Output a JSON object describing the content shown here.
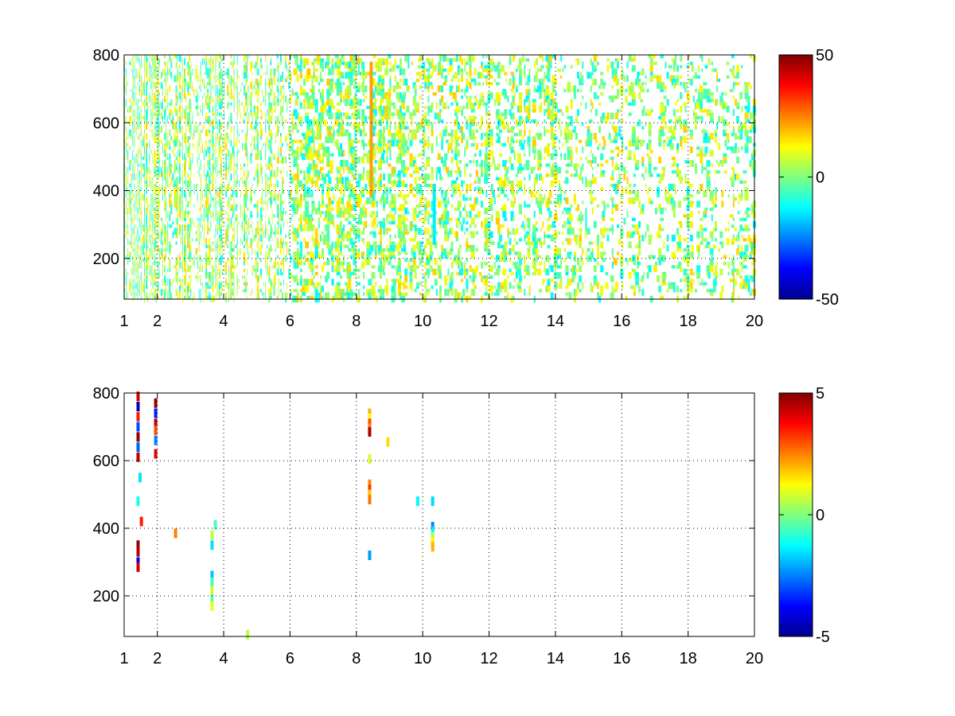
{
  "chart_data": [
    {
      "type": "heatmap",
      "title": "",
      "xlabel": "",
      "ylabel": "",
      "xlim": [
        1,
        20
      ],
      "ylim": [
        80,
        800
      ],
      "xticks": [
        1,
        2,
        4,
        6,
        8,
        10,
        12,
        14,
        16,
        18,
        20
      ],
      "xtick_labels": [
        "1",
        "2",
        "4",
        "6",
        "8",
        "10",
        "12",
        "14",
        "16",
        "18",
        "20"
      ],
      "yticks": [
        200,
        400,
        600,
        800
      ],
      "ytick_labels": [
        "200",
        "400",
        "600",
        "800"
      ],
      "grid": true,
      "colormap": "jet",
      "clim": [
        -50,
        50
      ],
      "colorbar_ticks": [
        -50,
        0,
        50
      ],
      "colorbar_labels": [
        "-50",
        "0",
        "50"
      ],
      "pattern": "dense",
      "seed": 7,
      "density_profile": [
        [
          1,
          0.55
        ],
        [
          4,
          0.45
        ],
        [
          6,
          0.3
        ],
        [
          10,
          0.22
        ],
        [
          14,
          0.18
        ],
        [
          20,
          0.12
        ]
      ],
      "typical_value_range": [
        -14,
        18
      ],
      "highlight_columns": [
        {
          "x": 8.4,
          "y_range": [
            380,
            780
          ],
          "value": 22
        },
        {
          "x": 10.3,
          "y_range": [
            240,
            420
          ],
          "value": -14
        }
      ],
      "cells": []
    },
    {
      "type": "heatmap",
      "title": "",
      "xlabel": "",
      "ylabel": "",
      "xlim": [
        1,
        20
      ],
      "ylim": [
        80,
        800
      ],
      "xticks": [
        1,
        2,
        4,
        6,
        8,
        10,
        12,
        14,
        16,
        18,
        20
      ],
      "xtick_labels": [
        "1",
        "2",
        "4",
        "6",
        "8",
        "10",
        "12",
        "14",
        "16",
        "18",
        "20"
      ],
      "yticks": [
        200,
        400,
        600,
        800
      ],
      "ytick_labels": [
        "200",
        "400",
        "600",
        "800"
      ],
      "grid": true,
      "colormap": "jet",
      "clim": [
        -5,
        5
      ],
      "colorbar_ticks": [
        -5,
        0,
        5
      ],
      "colorbar_labels": [
        "-5",
        "0",
        "5"
      ],
      "pattern": "sparse",
      "cells": [
        {
          "x": 1.42,
          "y": 790,
          "v": 4.2
        },
        {
          "x": 1.42,
          "y": 760,
          "v": -4.5
        },
        {
          "x": 1.42,
          "y": 730,
          "v": 3.5
        },
        {
          "x": 1.42,
          "y": 700,
          "v": -3.0
        },
        {
          "x": 1.42,
          "y": 670,
          "v": 4.8
        },
        {
          "x": 1.42,
          "y": 640,
          "v": -2.8
        },
        {
          "x": 1.42,
          "y": 610,
          "v": 4.5
        },
        {
          "x": 1.48,
          "y": 550,
          "v": -1.5
        },
        {
          "x": 1.42,
          "y": 480,
          "v": -1.0
        },
        {
          "x": 1.42,
          "y": 350,
          "v": 4.8
        },
        {
          "x": 1.42,
          "y": 330,
          "v": 4.5
        },
        {
          "x": 1.42,
          "y": 300,
          "v": -4.0
        },
        {
          "x": 1.42,
          "y": 285,
          "v": 4.2
        },
        {
          "x": 1.52,
          "y": 420,
          "v": 3.5
        },
        {
          "x": 1.95,
          "y": 770,
          "v": 4.8
        },
        {
          "x": 1.95,
          "y": 740,
          "v": -3.5
        },
        {
          "x": 1.95,
          "y": 710,
          "v": 4.5
        },
        {
          "x": 1.95,
          "y": 690,
          "v": 3.0
        },
        {
          "x": 1.95,
          "y": 660,
          "v": -2.5
        },
        {
          "x": 1.95,
          "y": 620,
          "v": 4.0
        },
        {
          "x": 2.55,
          "y": 385,
          "v": 2.5
        },
        {
          "x": 3.65,
          "y": 380,
          "v": 0.5
        },
        {
          "x": 3.65,
          "y": 350,
          "v": -1.5
        },
        {
          "x": 3.65,
          "y": 260,
          "v": -1.8
        },
        {
          "x": 3.65,
          "y": 240,
          "v": -0.6
        },
        {
          "x": 3.65,
          "y": 215,
          "v": 0.8
        },
        {
          "x": 3.65,
          "y": 190,
          "v": -0.4
        },
        {
          "x": 3.65,
          "y": 170,
          "v": 1.0
        },
        {
          "x": 3.75,
          "y": 410,
          "v": -0.5
        },
        {
          "x": 4.72,
          "y": 85,
          "v": 0.6
        },
        {
          "x": 8.4,
          "y": 740,
          "v": 2.0
        },
        {
          "x": 8.4,
          "y": 725,
          "v": 1.2
        },
        {
          "x": 8.4,
          "y": 710,
          "v": 3.0
        },
        {
          "x": 8.4,
          "y": 695,
          "v": 2.5
        },
        {
          "x": 8.4,
          "y": 685,
          "v": 4.5
        },
        {
          "x": 8.4,
          "y": 605,
          "v": 0.8
        },
        {
          "x": 8.4,
          "y": 530,
          "v": 2.4
        },
        {
          "x": 8.4,
          "y": 515,
          "v": 3.2
        },
        {
          "x": 8.4,
          "y": 500,
          "v": 1.8
        },
        {
          "x": 8.4,
          "y": 485,
          "v": 2.6
        },
        {
          "x": 8.4,
          "y": 320,
          "v": -2.2
        },
        {
          "x": 8.95,
          "y": 655,
          "v": 1.6
        },
        {
          "x": 9.85,
          "y": 480,
          "v": -1.3
        },
        {
          "x": 10.3,
          "y": 480,
          "v": -1.6
        },
        {
          "x": 10.3,
          "y": 405,
          "v": -2.4
        },
        {
          "x": 10.3,
          "y": 390,
          "v": -1.4
        },
        {
          "x": 10.3,
          "y": 375,
          "v": 0.4
        },
        {
          "x": 10.3,
          "y": 360,
          "v": 1.4
        },
        {
          "x": 10.3,
          "y": 345,
          "v": 2.0
        }
      ]
    }
  ]
}
